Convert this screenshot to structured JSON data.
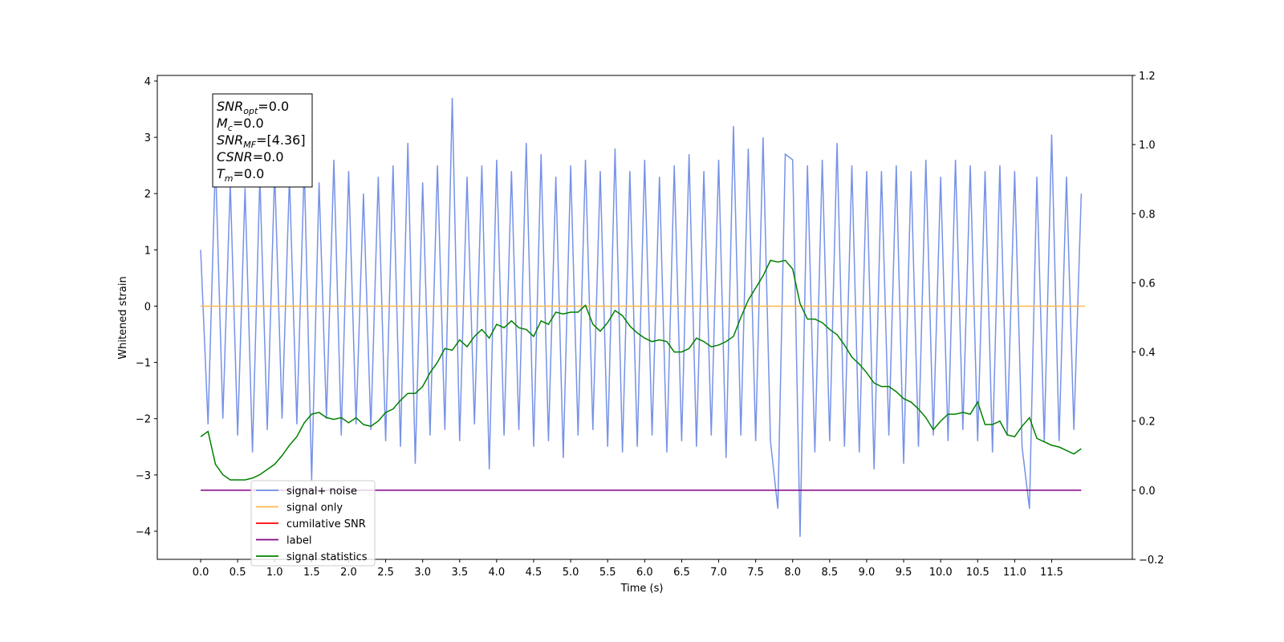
{
  "chart_data": {
    "type": "line",
    "xlabel": "Time (s)",
    "ylabel": "Whitened strain",
    "annotations": [
      {
        "symbol": "SNR",
        "sub": "opt",
        "rest": "=0.0"
      },
      {
        "symbol": "M",
        "sub": "c",
        "rest": "=0.0"
      },
      {
        "symbol": "SNR",
        "sub": "MF",
        "rest": "=[4.36]"
      },
      {
        "symbol": "CSNR",
        "rest": "=0.0"
      },
      {
        "symbol": "T",
        "sub": "m",
        "rest": "=0.0"
      }
    ],
    "legend": "lower left",
    "xlim": [
      -0.586,
      12.59
    ],
    "xticks": [
      {
        "value": 0,
        "label": "0.0"
      },
      0.5,
      {
        "value": 1,
        "label": "1.0"
      },
      1.5,
      {
        "value": 2,
        "label": "2.0"
      },
      2.5,
      {
        "value": 3,
        "label": "3.0"
      },
      3.5,
      {
        "value": 4,
        "label": "4.0"
      },
      4.5,
      {
        "value": 5,
        "label": "5.0"
      },
      5.5,
      {
        "value": 6,
        "label": "6.0"
      },
      6.5,
      {
        "value": 7,
        "label": "7.0"
      },
      7.5,
      {
        "value": 8,
        "label": "8.0"
      },
      8.5,
      {
        "value": 9,
        "label": "9.0"
      },
      9.5,
      {
        "value": 10,
        "label": "10.0"
      },
      10.5,
      {
        "value": 11,
        "label": "11.0"
      },
      11.5
    ],
    "ylim": [
      -4.5,
      4.1
    ],
    "yticks": [
      {
        "value": -4,
        "label": "−4"
      },
      {
        "value": -3,
        "label": "−3"
      },
      {
        "value": -2,
        "label": "−2"
      },
      {
        "value": -1,
        "label": "−1"
      },
      0,
      1,
      2,
      3,
      4
    ],
    "y2lim": [
      -0.2,
      1.2
    ],
    "y2ticks": [
      {
        "value": -0.2,
        "label": "−0.2"
      },
      {
        "value": 0,
        "label": "0.0"
      },
      0.2,
      0.4,
      0.6,
      0.8,
      {
        "value": 1,
        "label": "1.0"
      },
      1.2
    ],
    "x": [
      0,
      0.1,
      0.2,
      0.3,
      0.4,
      0.5,
      0.6,
      0.7,
      0.8,
      0.9,
      1,
      1.1,
      1.2,
      1.3,
      1.4,
      1.5,
      1.6,
      1.7,
      1.8,
      1.9,
      2,
      2.1,
      2.2,
      2.3,
      2.4,
      2.5,
      2.6,
      2.7,
      2.8,
      2.9,
      3,
      3.1,
      3.2,
      3.3,
      3.4,
      3.5,
      3.6,
      3.7,
      3.8,
      3.9,
      4,
      4.1,
      4.2,
      4.3,
      4.4,
      4.5,
      4.6,
      4.7,
      4.8,
      4.9,
      5,
      5.1,
      5.2,
      5.3,
      5.4,
      5.5,
      5.6,
      5.7,
      5.8,
      5.9,
      6,
      6.1,
      6.2,
      6.3,
      6.4,
      6.5,
      6.6,
      6.7,
      6.8,
      6.9,
      7,
      7.1,
      7.2,
      7.3,
      7.4,
      7.5,
      7.6,
      7.7,
      7.8,
      7.9,
      8,
      8.1,
      8.2,
      8.3,
      8.4,
      8.5,
      8.6,
      8.7,
      8.8,
      8.9,
      9,
      9.1,
      9.2,
      9.3,
      9.4,
      9.5,
      9.6,
      9.7,
      9.8,
      9.9,
      10,
      10.1,
      10.2,
      10.3,
      10.4,
      10.5,
      10.6,
      10.7,
      10.8,
      10.9,
      11,
      11.1,
      11.2,
      11.3,
      11.4,
      11.5,
      11.6,
      11.7,
      11.8,
      11.9
    ],
    "series": [
      {
        "name": "signal+ noise",
        "color": "#6f8ce6",
        "values": [
          1.0,
          -2.1,
          2.6,
          -2.0,
          2.2,
          -2.3,
          2.1,
          -2.6,
          2.3,
          -2.2,
          2.4,
          -2.0,
          2.3,
          -2.1,
          2.5,
          -3.1,
          2.2,
          -2.0,
          2.6,
          -2.3,
          2.4,
          -2.1,
          2.0,
          -2.2,
          2.3,
          -2.4,
          2.5,
          -2.5,
          2.9,
          -2.8,
          2.2,
          -2.3,
          2.5,
          -2.2,
          3.7,
          -2.4,
          2.3,
          -2.1,
          2.5,
          -2.9,
          2.6,
          -2.3,
          2.4,
          -2.2,
          2.9,
          -2.5,
          2.7,
          -2.4,
          2.3,
          -2.7,
          2.5,
          -2.3,
          2.6,
          -2.2,
          2.4,
          -2.5,
          2.8,
          -2.6,
          2.4,
          -2.5,
          2.6,
          -2.3,
          2.3,
          -2.6,
          2.5,
          -2.4,
          2.7,
          -2.5,
          2.4,
          -2.3,
          2.6,
          -2.7,
          3.2,
          -2.3,
          2.8,
          -2.4,
          3.0,
          -2.4,
          -3.6,
          2.7,
          2.6,
          -4.1,
          2.5,
          -2.6,
          2.6,
          -2.4,
          2.9,
          -2.5,
          2.5,
          -2.6,
          2.4,
          -2.9,
          2.4,
          -2.3,
          2.5,
          -2.8,
          2.4,
          -2.5,
          2.6,
          -2.3,
          2.3,
          -2.4,
          2.6,
          -2.2,
          2.5,
          -2.4,
          2.4,
          -2.6,
          2.5,
          -2.3,
          2.4,
          -2.5,
          -3.6,
          2.3,
          -2.4,
          3.05,
          -2.4,
          2.3,
          -2.2,
          2.0
        ]
      },
      {
        "name": "signal only",
        "color": "#ffb74d",
        "x": [
          0,
          11.95
        ],
        "values": [
          0,
          0
        ]
      },
      {
        "name": "cumilative SNR",
        "color": "#ff0000"
      },
      {
        "name": "label",
        "color": "#800080",
        "axis": "y2",
        "x": [
          0,
          11.9
        ],
        "values": [
          0,
          0
        ]
      },
      {
        "name": "signal statistics",
        "color": "#008000",
        "axis": "y2",
        "values": [
          0.155,
          0.17,
          0.075,
          0.045,
          0.03,
          0.03,
          0.03,
          0.035,
          0.045,
          0.06,
          0.075,
          0.1,
          0.13,
          0.155,
          0.195,
          0.22,
          0.225,
          0.21,
          0.205,
          0.21,
          0.195,
          0.21,
          0.19,
          0.185,
          0.2,
          0.225,
          0.235,
          0.26,
          0.28,
          0.28,
          0.3,
          0.34,
          0.37,
          0.41,
          0.405,
          0.435,
          0.415,
          0.445,
          0.465,
          0.44,
          0.48,
          0.47,
          0.49,
          0.47,
          0.465,
          0.445,
          0.49,
          0.48,
          0.515,
          0.51,
          0.515,
          0.515,
          0.535,
          0.48,
          0.46,
          0.485,
          0.52,
          0.505,
          0.475,
          0.455,
          0.44,
          0.43,
          0.435,
          0.43,
          0.4,
          0.4,
          0.41,
          0.44,
          0.43,
          0.415,
          0.42,
          0.43,
          0.445,
          0.5,
          0.55,
          0.585,
          0.62,
          0.665,
          0.66,
          0.665,
          0.64,
          0.54,
          0.495,
          0.495,
          0.485,
          0.465,
          0.45,
          0.42,
          0.385,
          0.365,
          0.34,
          0.31,
          0.3,
          0.3,
          0.285,
          0.265,
          0.255,
          0.235,
          0.21,
          0.175,
          0.2,
          0.22,
          0.22,
          0.225,
          0.22,
          0.255,
          0.19,
          0.19,
          0.2,
          0.16,
          0.155,
          0.185,
          0.21,
          0.15,
          0.14,
          0.13,
          0.125,
          0.115,
          0.105,
          0.12
        ]
      }
    ]
  }
}
